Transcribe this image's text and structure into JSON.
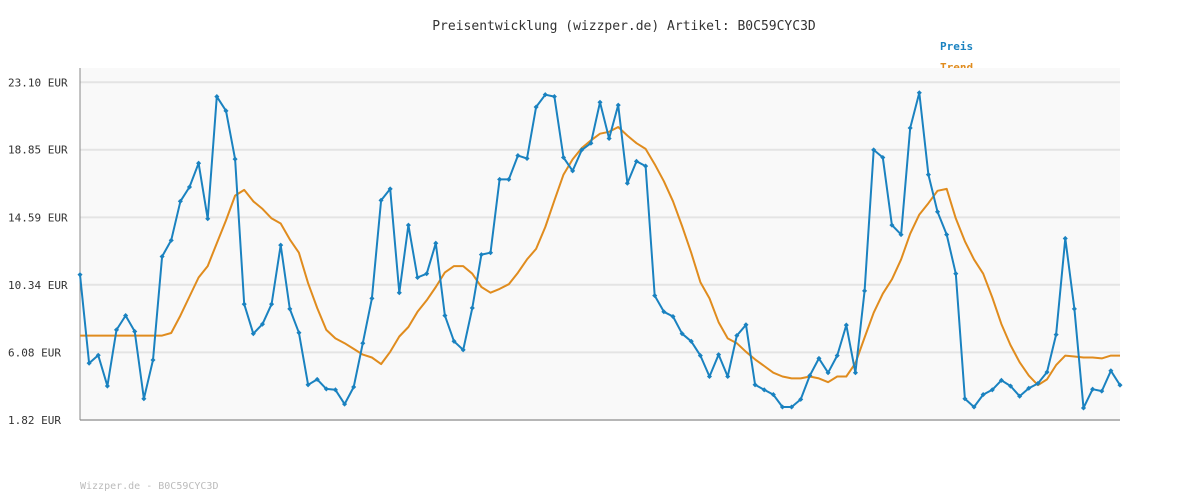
{
  "colors": {
    "preis": "#1a82c0",
    "trend": "#e08c1e",
    "grid": "#e4e4e4",
    "plot_bg": "#f9f9f9",
    "axis": "#888888"
  },
  "footer": "Wizzper.de - B0C59CYC3D",
  "chart_data": {
    "type": "line",
    "title": "Preisentwicklung (wizzper.de) Artikel: B0C59CYC3D",
    "xlabel": "",
    "ylabel": "",
    "ylim": [
      1.82,
      24.0
    ],
    "yticks": [
      1.82,
      6.08,
      10.34,
      14.59,
      18.85,
      23.1
    ],
    "ytick_labels": [
      "1.82 EUR",
      "6.08 EUR",
      "10.34 EUR",
      "14.59 EUR",
      "18.85 EUR",
      "23.10 EUR"
    ],
    "grid": true,
    "legend": "top-right",
    "series": [
      {
        "name": "Preis",
        "color": "#1a82c0",
        "values": [
          10.98,
          5.4,
          5.9,
          3.96,
          7.5,
          8.4,
          7.4,
          3.16,
          5.6,
          12.12,
          13.14,
          15.6,
          16.5,
          18.0,
          14.5,
          22.2,
          21.3,
          18.26,
          9.12,
          7.26,
          7.86,
          9.12,
          12.84,
          8.82,
          7.32,
          4.04,
          4.38,
          3.78,
          3.72,
          2.82,
          3.9,
          6.66,
          9.48,
          15.66,
          16.38,
          9.84,
          14.1,
          10.8,
          11.04,
          12.96,
          8.4,
          6.78,
          6.24,
          8.88,
          12.24,
          12.36,
          16.98,
          16.98,
          18.48,
          18.3,
          21.54,
          22.32,
          22.2,
          18.36,
          17.52,
          18.84,
          19.26,
          21.84,
          19.56,
          21.66,
          16.74,
          18.12,
          17.82,
          9.66,
          8.64,
          8.34,
          7.26,
          6.78,
          5.88,
          4.56,
          5.94,
          4.56,
          7.14,
          7.82,
          4.04,
          3.72,
          3.42,
          2.64,
          2.64,
          3.12,
          4.62,
          5.7,
          4.8,
          5.88,
          7.8,
          4.8,
          9.96,
          18.84,
          18.36,
          14.1,
          13.5,
          20.22,
          22.44,
          17.28,
          14.94,
          13.5,
          11.04,
          3.16,
          2.64,
          3.42,
          3.72,
          4.32,
          3.96,
          3.32,
          3.82,
          4.12,
          4.84,
          7.2,
          13.26,
          8.82,
          2.58,
          3.76,
          3.64,
          4.92,
          4.02
        ]
      },
      {
        "name": "Trend",
        "color": "#e08c1e",
        "values": [
          7.14,
          7.14,
          7.14,
          7.14,
          7.14,
          7.14,
          7.14,
          7.14,
          7.14,
          7.14,
          7.3,
          8.4,
          9.6,
          10.8,
          11.52,
          12.96,
          14.4,
          15.96,
          16.32,
          15.6,
          15.12,
          14.52,
          14.2,
          13.2,
          12.36,
          10.44,
          8.88,
          7.5,
          6.96,
          6.66,
          6.3,
          5.94,
          5.76,
          5.34,
          6.12,
          7.08,
          7.68,
          8.64,
          9.36,
          10.2,
          11.12,
          11.52,
          11.52,
          11.04,
          10.2,
          9.84,
          10.08,
          10.38,
          11.1,
          11.94,
          12.6,
          13.98,
          15.66,
          17.28,
          18.24,
          18.96,
          19.44,
          19.86,
          19.98,
          20.28,
          19.74,
          19.26,
          18.9,
          17.94,
          16.86,
          15.6,
          14.04,
          12.36,
          10.5,
          9.48,
          7.98,
          6.96,
          6.66,
          6.12,
          5.64,
          5.22,
          4.8,
          4.56,
          4.44,
          4.44,
          4.56,
          4.44,
          4.2,
          4.56,
          4.56,
          5.4,
          7.02,
          8.58,
          9.78,
          10.68,
          11.94,
          13.56,
          14.76,
          15.48,
          16.26,
          16.38,
          14.52,
          13.08,
          11.94,
          11.04,
          9.54,
          7.86,
          6.54,
          5.46,
          4.62,
          4.02,
          4.38,
          5.28,
          5.88,
          5.82,
          5.76,
          5.76,
          5.7,
          5.88,
          5.88
        ]
      }
    ]
  }
}
